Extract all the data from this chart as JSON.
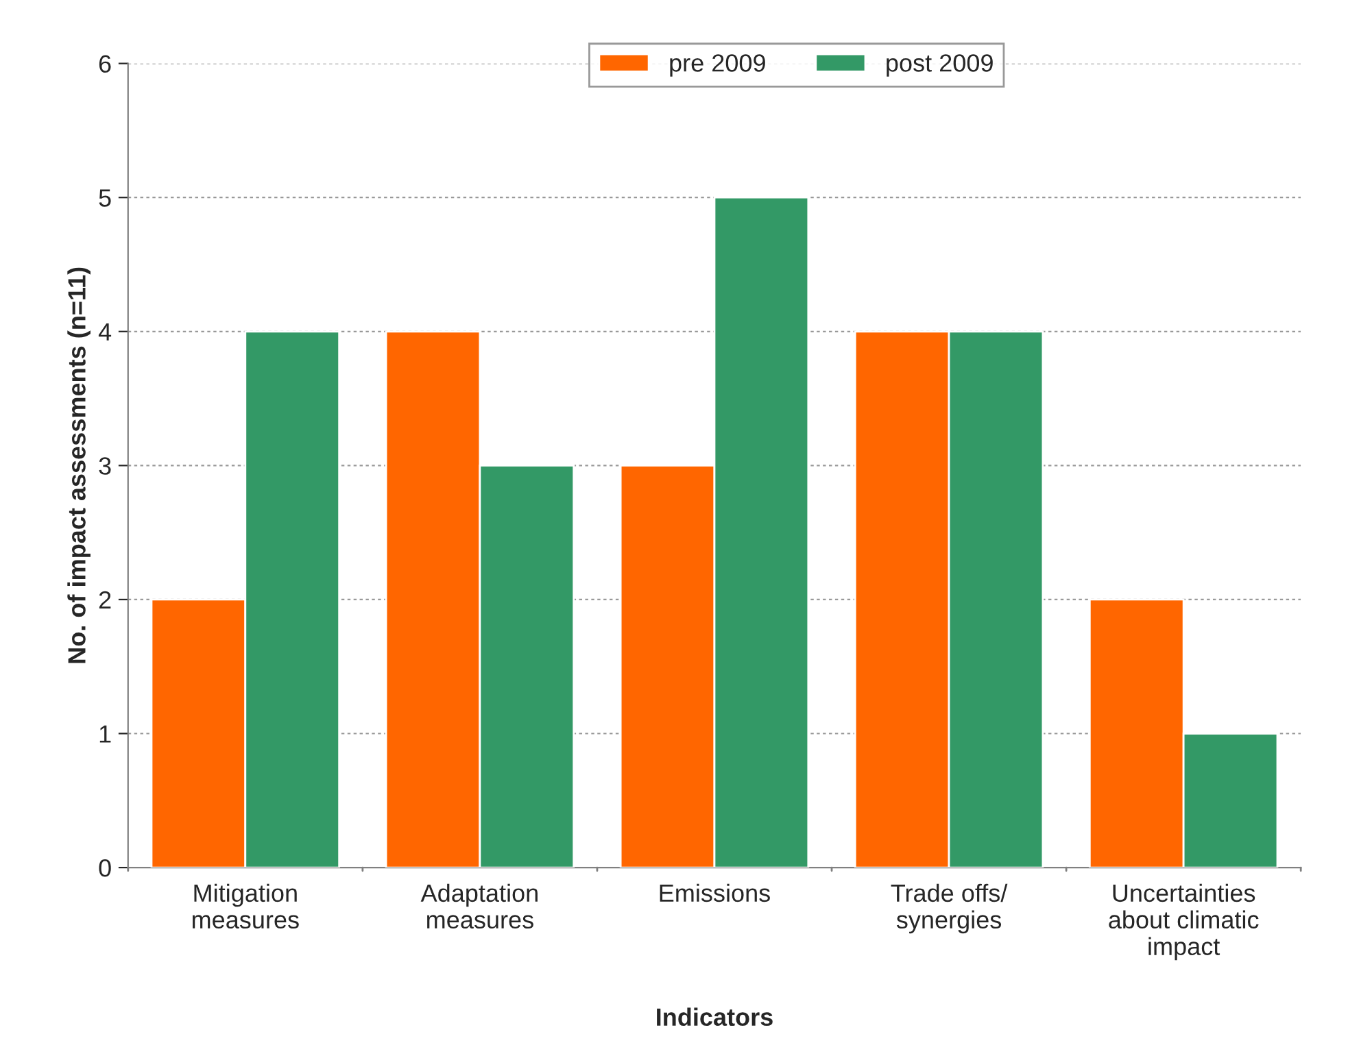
{
  "chart_data": {
    "type": "bar",
    "xlabel": "Indicators",
    "ylabel": "No. of impact assessments (n=11)",
    "categories": [
      "Mitigation\nmeasures",
      "Adaptation\nmeasures",
      "Emissions",
      "Trade offs/\nsynergies",
      "Uncertainties\nabout climatic\nimpact"
    ],
    "series": [
      {
        "name": "pre 2009",
        "color": "#ff6600",
        "values": [
          2,
          4,
          3,
          4,
          2
        ]
      },
      {
        "name": "post 2009",
        "color": "#339966",
        "values": [
          4,
          3,
          5,
          4,
          1
        ]
      }
    ],
    "ylim": [
      0,
      6
    ],
    "yticks": [
      0,
      1,
      2,
      3,
      4,
      5,
      6
    ],
    "grid": "y",
    "legend": "top"
  }
}
